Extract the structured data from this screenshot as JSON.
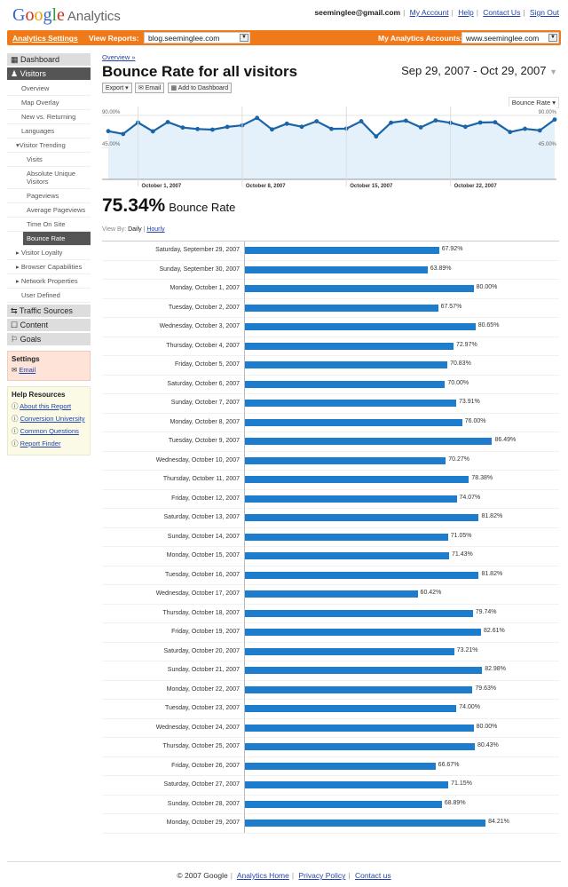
{
  "header": {
    "logo": "Google",
    "product": "Analytics",
    "user": "seeminglee@gmail.com",
    "links": [
      "My Account",
      "Help",
      "Contact Us",
      "Sign Out"
    ]
  },
  "orange_bar": {
    "settings": "Analytics Settings",
    "view_reports_label": "View Reports:",
    "view_reports_value": "blog.seeminglee.com",
    "accounts_label": "My Analytics Accounts:",
    "accounts_value": "www.seeminglee.com"
  },
  "sidebar": {
    "dashboard": "Dashboard",
    "visitors": "Visitors",
    "visitor_items": [
      "Overview",
      "Map Overlay",
      "New vs. Returning",
      "Languages"
    ],
    "trending": "Visitor Trending",
    "trending_items": [
      "Visits",
      "Absolute Unique Visitors",
      "Pageviews",
      "Average Pageviews",
      "Time On Site"
    ],
    "active": "Bounce Rate",
    "more_items": [
      "Visitor Loyalty",
      "Browser Capabilities",
      "Network Properties"
    ],
    "user_defined": "User Defined",
    "sections": [
      "Traffic Sources",
      "Content",
      "Goals"
    ],
    "settings": {
      "title": "Settings",
      "email": "Email"
    },
    "help": {
      "title": "Help Resources",
      "links": [
        "About this Report",
        "Conversion University",
        "Common Questions",
        "Report Finder"
      ]
    }
  },
  "main": {
    "breadcrumb": "Overview »",
    "title": "Bounce Rate for all visitors",
    "date_range": "Sep 29, 2007 - Oct 29, 2007",
    "buttons": {
      "export": "Export ▾",
      "email": "Email",
      "dashboard": "Add to Dashboard"
    },
    "metric_selector": "Bounce Rate ▾",
    "summary_value": "75.34%",
    "summary_label": "Bounce Rate",
    "view_by_label": "View By:",
    "view_daily": "Daily",
    "view_hourly": "Hourly"
  },
  "chart_data": {
    "type": "line",
    "y_ticks": [
      "90.00%",
      "45.00%"
    ],
    "ylim": [
      0,
      100
    ],
    "x_ticks": [
      "October 1, 2007",
      "October 8, 2007",
      "October 15, 2007",
      "October 22, 2007"
    ],
    "dates": [
      "Saturday, September 29, 2007",
      "Sunday, September 30, 2007",
      "Monday, October 1, 2007",
      "Tuesday, October 2, 2007",
      "Wednesday, October 3, 2007",
      "Thursday, October 4, 2007",
      "Friday, October 5, 2007",
      "Saturday, October 6, 2007",
      "Sunday, October 7, 2007",
      "Monday, October 8, 2007",
      "Tuesday, October 9, 2007",
      "Wednesday, October 10, 2007",
      "Thursday, October 11, 2007",
      "Friday, October 12, 2007",
      "Saturday, October 13, 2007",
      "Sunday, October 14, 2007",
      "Monday, October 15, 2007",
      "Tuesday, October 16, 2007",
      "Wednesday, October 17, 2007",
      "Thursday, October 18, 2007",
      "Friday, October 19, 2007",
      "Saturday, October 20, 2007",
      "Sunday, October 21, 2007",
      "Monday, October 22, 2007",
      "Tuesday, October 23, 2007",
      "Wednesday, October 24, 2007",
      "Thursday, October 25, 2007",
      "Friday, October 26, 2007",
      "Saturday, October 27, 2007",
      "Sunday, October 28, 2007",
      "Monday, October 29, 2007"
    ],
    "values": [
      67.92,
      63.89,
      80.0,
      67.57,
      80.65,
      72.97,
      70.83,
      70.0,
      73.91,
      76.0,
      86.49,
      70.27,
      78.38,
      74.07,
      81.82,
      71.05,
      71.43,
      81.82,
      60.42,
      79.74,
      82.61,
      73.21,
      82.98,
      79.63,
      74.0,
      80.0,
      80.43,
      66.67,
      71.15,
      68.89,
      84.21
    ],
    "labels": [
      "67.92%",
      "63.89%",
      "80.00%",
      "67.57%",
      "80.65%",
      "72.97%",
      "70.83%",
      "70.00%",
      "73.91%",
      "76.00%",
      "86.49%",
      "70.27%",
      "78.38%",
      "74.07%",
      "81.82%",
      "71.05%",
      "71.43%",
      "81.82%",
      "60.42%",
      "79.74%",
      "82.61%",
      "73.21%",
      "82.98%",
      "79.63%",
      "74.00%",
      "80.00%",
      "80.43%",
      "66.67%",
      "71.15%",
      "68.89%",
      "84.21%"
    ],
    "line_color": "#1a64a8",
    "bar_color": "#1e7ccc"
  },
  "footer": {
    "copyright": "© 2007 Google",
    "links": [
      "Analytics Home",
      "Privacy Policy",
      "Contact us"
    ]
  }
}
